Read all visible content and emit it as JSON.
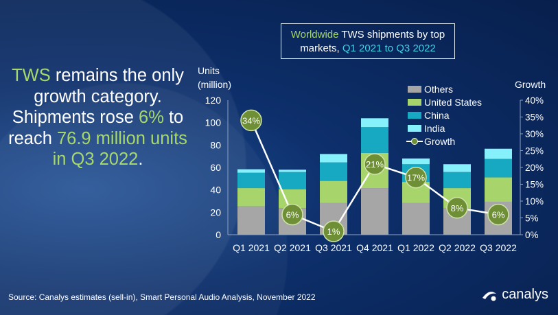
{
  "headline": {
    "p1": "TWS",
    "p2": " remains the only growth category. Shipments rose ",
    "p3": "6%",
    "p4": " to reach ",
    "p5": "76.9 million units in Q3 2022",
    "p6": "."
  },
  "title": {
    "part1": "Worldwide",
    "part2": " TWS shipments by top markets, ",
    "part3": "Q1 2021 to Q3 2022"
  },
  "source": "Source: Canalys estimates (sell-in), Smart Personal Audio Analysis, November 2022",
  "logo": "canalys",
  "colors": {
    "others": "#a6a6a6",
    "us": "#a8d46c",
    "china": "#17a9c2",
    "india": "#86f0fb",
    "growth": "#6e8f35"
  },
  "chart_data": {
    "type": "bar",
    "stacked": true,
    "title": "Worldwide TWS shipments by top markets, Q1 2021 to Q3 2022",
    "ylabel": "Units (million)",
    "ylabel_lines": [
      "Units",
      "(million)"
    ],
    "y2label": "Growth",
    "ylim": [
      0,
      120
    ],
    "y2lim": [
      0,
      40
    ],
    "yticks": [
      "0",
      "20",
      "40",
      "60",
      "80",
      "100",
      "120"
    ],
    "y2ticks": [
      "0%",
      "5%",
      "10%",
      "15%",
      "20%",
      "25%",
      "30%",
      "35%",
      "40%"
    ],
    "categories": [
      "Q1 2021",
      "Q2 2021",
      "Q3 2021",
      "Q4 2021",
      "Q1 2022",
      "Q2 2022",
      "Q3 2022"
    ],
    "series": [
      {
        "name": "Others",
        "values": [
          25.3,
          23.7,
          28.2,
          41.6,
          28.2,
          23.5,
          29.4
        ]
      },
      {
        "name": "United States",
        "values": [
          16.3,
          16.9,
          19.8,
          31.4,
          18.9,
          18.1,
          21.8
        ]
      },
      {
        "name": "China",
        "values": [
          13.7,
          15.3,
          16.5,
          23.0,
          15.8,
          14.3,
          16.4
        ]
      },
      {
        "name": "India",
        "values": [
          3.1,
          2.1,
          7.5,
          7.9,
          5.1,
          7.0,
          9.1
        ]
      }
    ],
    "growth": {
      "name": "Growth",
      "values": [
        34,
        6,
        1,
        21,
        17,
        8,
        6
      ],
      "labels": [
        "34%",
        "6%",
        "1%",
        "21%",
        "17%",
        "8%",
        "6%"
      ]
    },
    "legend": [
      "Others",
      "United States",
      "China",
      "India",
      "Growth"
    ],
    "legend_position": "top-right"
  }
}
